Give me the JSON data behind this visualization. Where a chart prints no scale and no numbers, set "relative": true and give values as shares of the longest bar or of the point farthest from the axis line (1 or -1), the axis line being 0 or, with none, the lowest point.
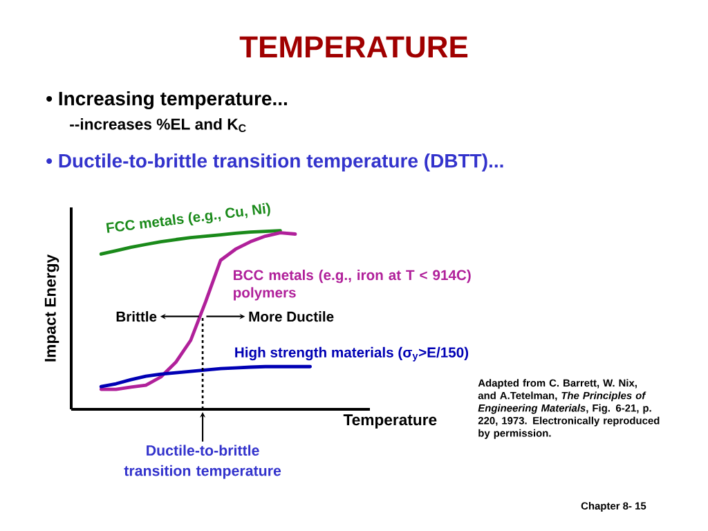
{
  "chart_data": {
    "type": "line",
    "title": "TEMPERATURE",
    "xlabel": "Temperature",
    "ylabel": "Impact Energy",
    "relative": true,
    "line_style": "solid",
    "categories": [
      null,
      null,
      null,
      null,
      null,
      null,
      null,
      null,
      null,
      null,
      null,
      null,
      null,
      null,
      null,
      null,
      null,
      null,
      null,
      null,
      null
    ],
    "series": [
      {
        "name": "FCC metals (e.g., Cu, Ni)",
        "color": "#1a8a1a",
        "values": [
          null,
          null,
          0.869,
          0.888,
          0.907,
          0.923,
          0.938,
          0.95,
          0.961,
          0.969,
          0.977,
          0.985,
          0.992,
          0.996,
          1.0,
          null,
          null,
          null,
          null,
          null,
          null
        ]
      },
      {
        "name": "BCC metals (e.g., iron at T < 914C) polymers",
        "color": "#b0209a",
        "values": [
          null,
          null,
          0.112,
          0.112,
          0.124,
          0.135,
          0.181,
          0.263,
          0.386,
          0.602,
          0.834,
          0.896,
          0.938,
          0.969,
          0.988,
          0.981,
          null,
          null,
          null,
          null,
          null
        ]
      },
      {
        "name": "High strength materials (σ$_{y}$>E/150)",
        "color": "#0000b4",
        "values": [
          null,
          null,
          0.127,
          0.143,
          0.166,
          0.185,
          0.197,
          0.205,
          0.212,
          0.22,
          0.228,
          0.232,
          0.236,
          0.239,
          0.239,
          0.239,
          0.239,
          null,
          null,
          null,
          null
        ]
      }
    ],
    "annotations": [
      "• Increasing temperature...",
      "--increases %EL and K$_{C}$",
      "• Ductile-to-brittle transition temperature (DBTT)...",
      "Brittle",
      "More Ductile",
      "Adapted from C. Barrett, W. Nix, and A.Tetelman, *The Principles of Engineering Materials*, Fig. 6-21, p. 220, 1973. Electronically reproduced by permission.",
      "Chapter 8- 15",
      "Ductile-to-brittle transition temperature"
    ]
  }
}
